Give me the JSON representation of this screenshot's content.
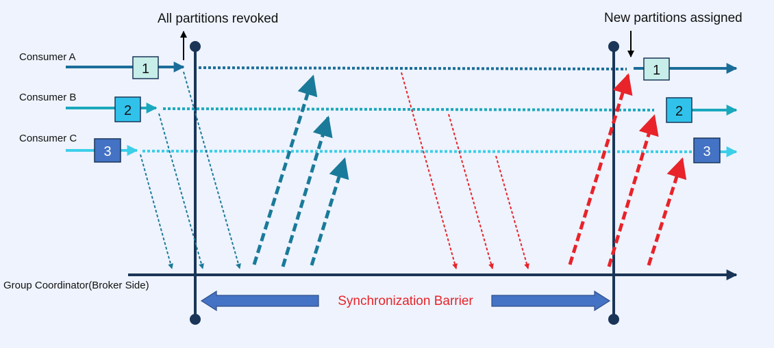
{
  "annotations": {
    "revoked": "All partitions revoked",
    "assigned": "New partitions assigned",
    "barrier": "Synchronization Barrier"
  },
  "consumers": [
    {
      "label": "Consumer A",
      "partition": "1",
      "line_color": "#1a6d99",
      "box_fill": "#c7eee9",
      "box_text_color": "#111111"
    },
    {
      "label": "Consumer B",
      "partition": "2",
      "line_color": "#1aa8bd",
      "box_fill": "#30c2ea",
      "box_text_color": "#111111"
    },
    {
      "label": "Consumer C",
      "partition": "3",
      "line_color": "#3ccfe8",
      "box_fill": "#4472c4",
      "box_text_color": "#ffffff"
    }
  ],
  "coordinator": {
    "label": "Group Coordinator(Broker Side)",
    "line_color": "#1a3557"
  },
  "colors": {
    "background": "#eef3fd",
    "barrier_arrow": "#4472c4",
    "barrier_text": "#e8232a",
    "sync_request": "#e8232a",
    "annotation_arrow": "#000000",
    "barrier_line": "#1a3557"
  }
}
